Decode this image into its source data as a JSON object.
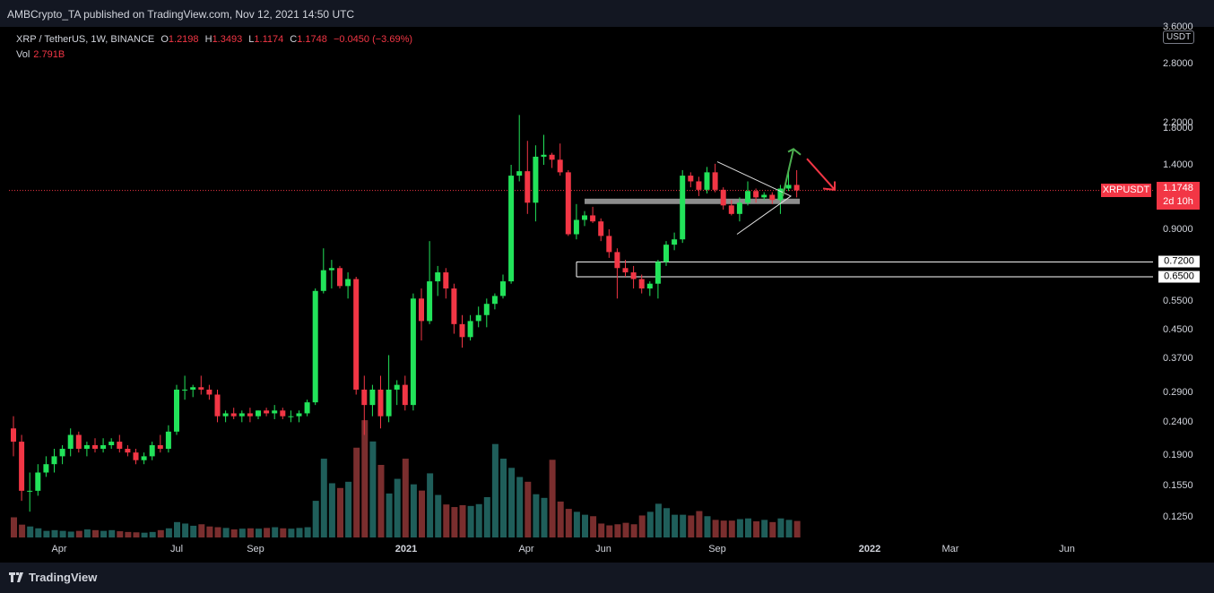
{
  "header": {
    "published": "AMBCrypto_TA published on TradingView.com, Nov 12, 2021 14:50 UTC"
  },
  "legend": {
    "symbol": "XRP / TetherUS, 1W, BINANCE",
    "o_label": "O",
    "o": "1.2198",
    "h_label": "H",
    "h": "1.3493",
    "l_label": "L",
    "l": "1.1174",
    "c_label": "C",
    "c": "1.1748",
    "change": "−0.0450 (−3.69%)",
    "vol_label": "Vol",
    "vol": "2.791B"
  },
  "price_axis": {
    "unit": "USDT",
    "ticks": [
      "3.6000",
      "2.8000",
      "2.2000",
      "1.8000",
      "1.4000",
      "0.9000",
      "0.5500",
      "0.4500",
      "0.3700",
      "0.2900",
      "0.2400",
      "0.1900",
      "0.1550",
      "0.1250"
    ]
  },
  "time_axis": {
    "ticks": [
      {
        "label": "Apr",
        "bold": false
      },
      {
        "label": "Jul",
        "bold": false
      },
      {
        "label": "Sep",
        "bold": false
      },
      {
        "label": "2021",
        "bold": true
      },
      {
        "label": "Apr",
        "bold": false
      },
      {
        "label": "Jun",
        "bold": false
      },
      {
        "label": "Sep",
        "bold": false
      },
      {
        "label": "2022",
        "bold": true
      },
      {
        "label": "Mar",
        "bold": false
      },
      {
        "label": "Jun",
        "bold": false
      }
    ]
  },
  "last_price": {
    "symbol": "XRPUSDT",
    "price": "1.1748",
    "countdown": "2d 10h"
  },
  "levels": [
    "0.7200",
    "0.6500"
  ],
  "footer": {
    "brand": "TradingView"
  },
  "colors": {
    "up": "#22e35a",
    "down": "#f23645",
    "vol_up": "#1f5e5a",
    "vol_down": "#7a2e2e",
    "level": "#ffffff",
    "support": "#8c8c8c",
    "arrow_up": "#4caf50",
    "arrow_down": "#f23645"
  },
  "chart_data": {
    "type": "candlestick",
    "scale": "log",
    "ylim": [
      0.11,
      3.7
    ],
    "price_levels": [
      0.72,
      0.65
    ],
    "support_zone": 1.09,
    "candles": [
      {
        "o": 0.23,
        "h": 0.25,
        "l": 0.19,
        "c": 0.21
      },
      {
        "o": 0.21,
        "h": 0.22,
        "l": 0.14,
        "c": 0.15
      },
      {
        "o": 0.15,
        "h": 0.17,
        "l": 0.13,
        "c": 0.15
      },
      {
        "o": 0.15,
        "h": 0.18,
        "l": 0.145,
        "c": 0.17
      },
      {
        "o": 0.17,
        "h": 0.19,
        "l": 0.165,
        "c": 0.18
      },
      {
        "o": 0.18,
        "h": 0.2,
        "l": 0.17,
        "c": 0.19
      },
      {
        "o": 0.19,
        "h": 0.205,
        "l": 0.18,
        "c": 0.2
      },
      {
        "o": 0.2,
        "h": 0.23,
        "l": 0.19,
        "c": 0.22
      },
      {
        "o": 0.22,
        "h": 0.225,
        "l": 0.195,
        "c": 0.2
      },
      {
        "o": 0.2,
        "h": 0.21,
        "l": 0.19,
        "c": 0.205
      },
      {
        "o": 0.205,
        "h": 0.215,
        "l": 0.195,
        "c": 0.2
      },
      {
        "o": 0.2,
        "h": 0.215,
        "l": 0.195,
        "c": 0.205
      },
      {
        "o": 0.205,
        "h": 0.215,
        "l": 0.2,
        "c": 0.21
      },
      {
        "o": 0.21,
        "h": 0.22,
        "l": 0.195,
        "c": 0.2
      },
      {
        "o": 0.2,
        "h": 0.205,
        "l": 0.19,
        "c": 0.195
      },
      {
        "o": 0.195,
        "h": 0.2,
        "l": 0.18,
        "c": 0.185
      },
      {
        "o": 0.185,
        "h": 0.195,
        "l": 0.18,
        "c": 0.19
      },
      {
        "o": 0.19,
        "h": 0.21,
        "l": 0.185,
        "c": 0.205
      },
      {
        "o": 0.205,
        "h": 0.22,
        "l": 0.195,
        "c": 0.2
      },
      {
        "o": 0.2,
        "h": 0.235,
        "l": 0.195,
        "c": 0.225
      },
      {
        "o": 0.225,
        "h": 0.31,
        "l": 0.22,
        "c": 0.3
      },
      {
        "o": 0.3,
        "h": 0.33,
        "l": 0.28,
        "c": 0.3
      },
      {
        "o": 0.3,
        "h": 0.31,
        "l": 0.285,
        "c": 0.305
      },
      {
        "o": 0.305,
        "h": 0.33,
        "l": 0.29,
        "c": 0.3
      },
      {
        "o": 0.3,
        "h": 0.31,
        "l": 0.28,
        "c": 0.29
      },
      {
        "o": 0.29,
        "h": 0.3,
        "l": 0.24,
        "c": 0.25
      },
      {
        "o": 0.25,
        "h": 0.26,
        "l": 0.24,
        "c": 0.255
      },
      {
        "o": 0.255,
        "h": 0.265,
        "l": 0.245,
        "c": 0.25
      },
      {
        "o": 0.25,
        "h": 0.26,
        "l": 0.24,
        "c": 0.255
      },
      {
        "o": 0.255,
        "h": 0.265,
        "l": 0.24,
        "c": 0.25
      },
      {
        "o": 0.25,
        "h": 0.26,
        "l": 0.245,
        "c": 0.26
      },
      {
        "o": 0.26,
        "h": 0.265,
        "l": 0.25,
        "c": 0.255
      },
      {
        "o": 0.255,
        "h": 0.27,
        "l": 0.245,
        "c": 0.26
      },
      {
        "o": 0.26,
        "h": 0.265,
        "l": 0.245,
        "c": 0.25
      },
      {
        "o": 0.25,
        "h": 0.26,
        "l": 0.24,
        "c": 0.25
      },
      {
        "o": 0.25,
        "h": 0.26,
        "l": 0.24,
        "c": 0.255
      },
      {
        "o": 0.255,
        "h": 0.28,
        "l": 0.25,
        "c": 0.275
      },
      {
        "o": 0.275,
        "h": 0.6,
        "l": 0.27,
        "c": 0.59
      },
      {
        "o": 0.59,
        "h": 0.79,
        "l": 0.58,
        "c": 0.68
      },
      {
        "o": 0.68,
        "h": 0.73,
        "l": 0.6,
        "c": 0.69
      },
      {
        "o": 0.69,
        "h": 0.7,
        "l": 0.6,
        "c": 0.61
      },
      {
        "o": 0.61,
        "h": 0.67,
        "l": 0.56,
        "c": 0.64
      },
      {
        "o": 0.64,
        "h": 0.65,
        "l": 0.29,
        "c": 0.3
      },
      {
        "o": 0.3,
        "h": 0.33,
        "l": 0.22,
        "c": 0.27
      },
      {
        "o": 0.27,
        "h": 0.31,
        "l": 0.25,
        "c": 0.3
      },
      {
        "o": 0.3,
        "h": 0.33,
        "l": 0.23,
        "c": 0.25
      },
      {
        "o": 0.25,
        "h": 0.38,
        "l": 0.24,
        "c": 0.3
      },
      {
        "o": 0.3,
        "h": 0.32,
        "l": 0.27,
        "c": 0.31
      },
      {
        "o": 0.31,
        "h": 0.33,
        "l": 0.26,
        "c": 0.27
      },
      {
        "o": 0.27,
        "h": 0.58,
        "l": 0.26,
        "c": 0.56
      },
      {
        "o": 0.56,
        "h": 0.6,
        "l": 0.42,
        "c": 0.48
      },
      {
        "o": 0.48,
        "h": 0.83,
        "l": 0.47,
        "c": 0.63
      },
      {
        "o": 0.63,
        "h": 0.7,
        "l": 0.57,
        "c": 0.67
      },
      {
        "o": 0.67,
        "h": 0.69,
        "l": 0.56,
        "c": 0.6
      },
      {
        "o": 0.6,
        "h": 0.62,
        "l": 0.44,
        "c": 0.47
      },
      {
        "o": 0.47,
        "h": 0.5,
        "l": 0.4,
        "c": 0.43
      },
      {
        "o": 0.43,
        "h": 0.5,
        "l": 0.42,
        "c": 0.48
      },
      {
        "o": 0.48,
        "h": 0.53,
        "l": 0.46,
        "c": 0.5
      },
      {
        "o": 0.5,
        "h": 0.56,
        "l": 0.46,
        "c": 0.54
      },
      {
        "o": 0.54,
        "h": 0.58,
        "l": 0.52,
        "c": 0.57
      },
      {
        "o": 0.57,
        "h": 0.66,
        "l": 0.56,
        "c": 0.63
      },
      {
        "o": 0.63,
        "h": 1.4,
        "l": 0.62,
        "c": 1.3
      },
      {
        "o": 1.3,
        "h": 1.97,
        "l": 1.25,
        "c": 1.34
      },
      {
        "o": 1.34,
        "h": 1.65,
        "l": 1.0,
        "c": 1.08
      },
      {
        "o": 1.08,
        "h": 1.6,
        "l": 0.95,
        "c": 1.48
      },
      {
        "o": 1.48,
        "h": 1.72,
        "l": 1.4,
        "c": 1.5
      },
      {
        "o": 1.5,
        "h": 1.52,
        "l": 1.37,
        "c": 1.45
      },
      {
        "o": 1.45,
        "h": 1.62,
        "l": 1.3,
        "c": 1.33
      },
      {
        "o": 1.33,
        "h": 1.35,
        "l": 0.86,
        "c": 0.87
      },
      {
        "o": 0.87,
        "h": 1.07,
        "l": 0.84,
        "c": 0.96
      },
      {
        "o": 0.96,
        "h": 1.02,
        "l": 0.92,
        "c": 0.99
      },
      {
        "o": 0.99,
        "h": 1.05,
        "l": 0.94,
        "c": 0.95
      },
      {
        "o": 0.95,
        "h": 0.97,
        "l": 0.83,
        "c": 0.86
      },
      {
        "o": 0.86,
        "h": 0.9,
        "l": 0.74,
        "c": 0.77
      },
      {
        "o": 0.77,
        "h": 0.79,
        "l": 0.56,
        "c": 0.69
      },
      {
        "o": 0.69,
        "h": 0.73,
        "l": 0.65,
        "c": 0.67
      },
      {
        "o": 0.67,
        "h": 0.7,
        "l": 0.6,
        "c": 0.64
      },
      {
        "o": 0.64,
        "h": 0.66,
        "l": 0.58,
        "c": 0.6
      },
      {
        "o": 0.6,
        "h": 0.63,
        "l": 0.57,
        "c": 0.62
      },
      {
        "o": 0.62,
        "h": 0.73,
        "l": 0.56,
        "c": 0.72
      },
      {
        "o": 0.72,
        "h": 0.83,
        "l": 0.7,
        "c": 0.81
      },
      {
        "o": 0.81,
        "h": 0.88,
        "l": 0.78,
        "c": 0.84
      },
      {
        "o": 0.84,
        "h": 1.35,
        "l": 0.82,
        "c": 1.3
      },
      {
        "o": 1.3,
        "h": 1.33,
        "l": 1.2,
        "c": 1.25
      },
      {
        "o": 1.25,
        "h": 1.29,
        "l": 1.13,
        "c": 1.18
      },
      {
        "o": 1.18,
        "h": 1.38,
        "l": 1.15,
        "c": 1.33
      },
      {
        "o": 1.33,
        "h": 1.41,
        "l": 1.16,
        "c": 1.18
      },
      {
        "o": 1.18,
        "h": 1.2,
        "l": 1.03,
        "c": 1.06
      },
      {
        "o": 1.06,
        "h": 1.1,
        "l": 0.99,
        "c": 1.0
      },
      {
        "o": 1.0,
        "h": 1.12,
        "l": 0.95,
        "c": 1.08
      },
      {
        "o": 1.08,
        "h": 1.25,
        "l": 1.06,
        "c": 1.17
      },
      {
        "o": 1.17,
        "h": 1.19,
        "l": 1.08,
        "c": 1.12
      },
      {
        "o": 1.12,
        "h": 1.16,
        "l": 1.1,
        "c": 1.14
      },
      {
        "o": 1.14,
        "h": 1.16,
        "l": 1.07,
        "c": 1.1
      },
      {
        "o": 1.1,
        "h": 1.22,
        "l": 1.0,
        "c": 1.19
      },
      {
        "o": 1.19,
        "h": 1.34,
        "l": 1.17,
        "c": 1.22
      },
      {
        "o": 1.22,
        "h": 1.35,
        "l": 1.12,
        "c": 1.175
      }
    ],
    "volume": [
      55,
      35,
      30,
      25,
      18,
      20,
      18,
      16,
      18,
      22,
      20,
      18,
      20,
      17,
      15,
      14,
      13,
      15,
      20,
      25,
      42,
      38,
      32,
      36,
      30,
      28,
      26,
      22,
      24,
      25,
      24,
      26,
      28,
      25,
      24,
      26,
      28,
      100,
      215,
      148,
      135,
      152,
      245,
      320,
      262,
      198,
      120,
      160,
      215,
      145,
      128,
      175,
      116,
      90,
      83,
      88,
      86,
      91,
      110,
      255,
      215,
      190,
      165,
      152,
      118,
      108,
      212,
      98,
      78,
      70,
      62,
      58,
      38,
      33,
      36,
      40,
      36,
      60,
      70,
      92,
      80,
      62,
      62,
      60,
      72,
      58,
      48,
      46,
      46,
      50,
      52,
      44,
      48,
      42,
      52,
      48,
      45
    ],
    "volume_max": 330
  }
}
